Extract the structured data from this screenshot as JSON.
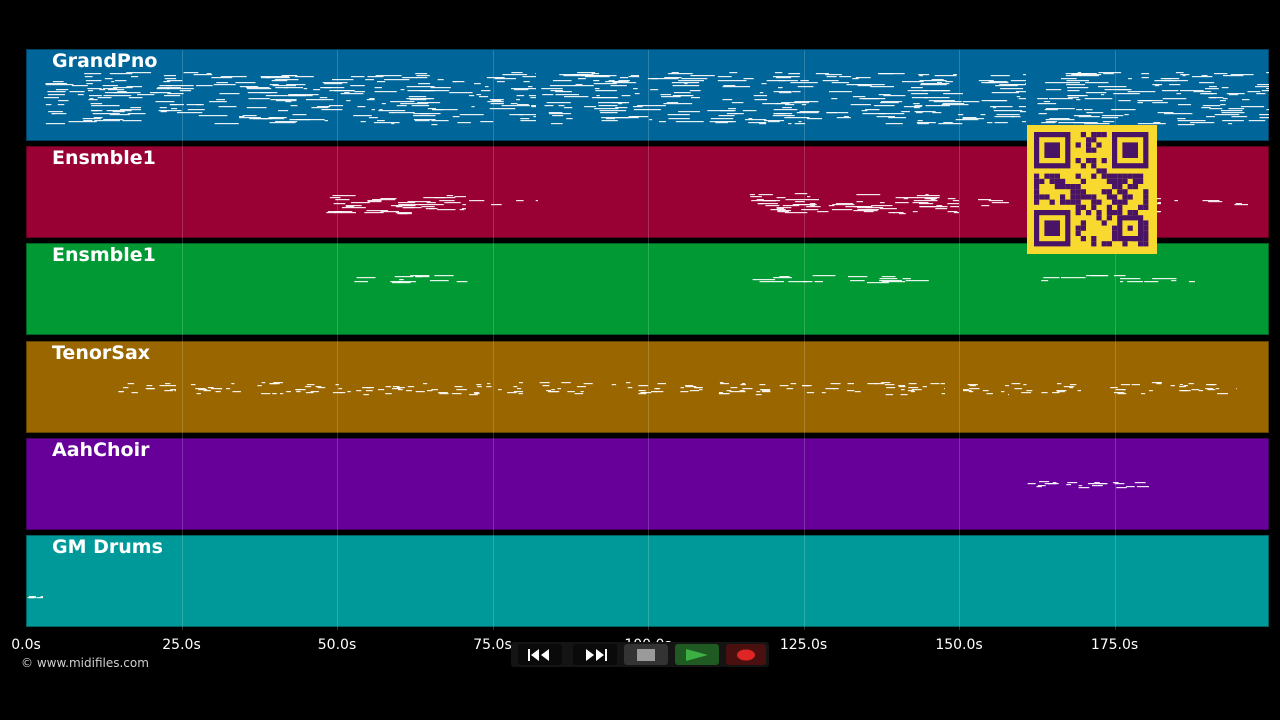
{
  "app": {
    "copyright": "© www.midifiles.com"
  },
  "tracks": [
    {
      "name": "GrandPno",
      "color": "#006699"
    },
    {
      "name": "Ensmble1",
      "color": "#990033"
    },
    {
      "name": "Ensmble1",
      "color": "#009933"
    },
    {
      "name": "TenorSax",
      "color": "#996600"
    },
    {
      "name": "AahChoir",
      "color": "#660099"
    },
    {
      "name": "GM Drums",
      "color": "#009999"
    }
  ],
  "timeline": {
    "range_seconds": [
      0,
      200
    ],
    "ticks": [
      "0.0s",
      "25.0s",
      "50.0s",
      "75.0s",
      "100.0s",
      "125.0s",
      "150.0s",
      "175.0s"
    ],
    "tick_values": [
      0,
      25,
      50,
      75,
      100,
      125,
      150,
      175
    ]
  },
  "transport": {
    "buttons": [
      {
        "name": "rewind-button",
        "icon": "rewind-icon"
      },
      {
        "name": "fast-forward-button",
        "icon": "fast-forward-icon"
      },
      {
        "name": "stop-button",
        "icon": "stop-icon"
      },
      {
        "name": "play-button",
        "icon": "play-icon",
        "color": "#3cb043"
      },
      {
        "name": "record-button",
        "icon": "record-icon",
        "color": "#e02525"
      }
    ]
  },
  "overlay": {
    "qr_code": {
      "color": "#f7d92f",
      "module_color": "#4a1466"
    }
  }
}
